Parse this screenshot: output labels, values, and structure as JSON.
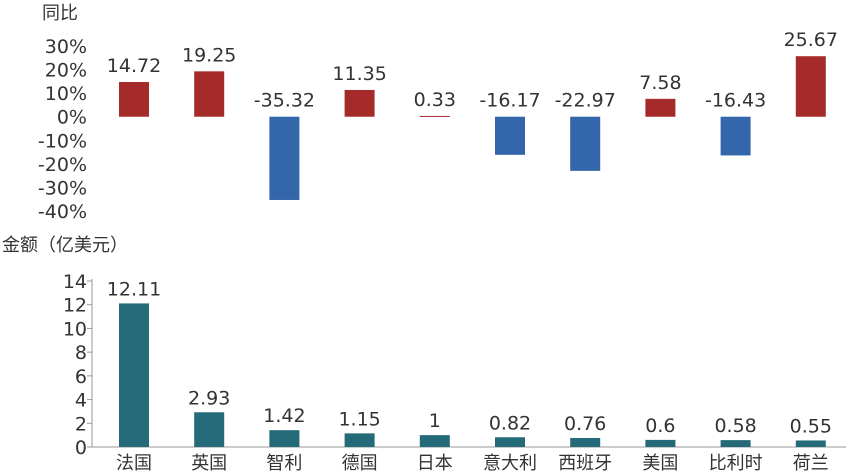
{
  "chart_data": [
    {
      "type": "bar",
      "ylabel": "同比",
      "categories": [
        "法国",
        "英国",
        "智利",
        "德国",
        "日本",
        "意大利",
        "西班牙",
        "美国",
        "比利时",
        "荷兰"
      ],
      "values": [
        14.72,
        19.25,
        -35.32,
        11.35,
        0.33,
        -16.17,
        -22.97,
        7.58,
        -16.43,
        25.67
      ],
      "value_labels": [
        "14.72",
        "19.25",
        "-35.32",
        "11.35",
        "0.33",
        "-16.17",
        "-22.97",
        "7.58",
        "-16.43",
        "25.67"
      ],
      "ylim": [
        -40,
        30
      ],
      "yticks": [
        30,
        20,
        10,
        0,
        -10,
        -20,
        -30,
        -40
      ],
      "ytick_labels": [
        "30%",
        "20%",
        "10%",
        "0%",
        "-10%",
        "-20%",
        "-30%",
        "-40%"
      ],
      "colors": {
        "positive": "#a52a2a",
        "negative": "#3466ac"
      },
      "grid": false
    },
    {
      "type": "bar",
      "ylabel": "金额（亿美元）",
      "categories": [
        "法国",
        "英国",
        "智利",
        "德国",
        "日本",
        "意大利",
        "西班牙",
        "美国",
        "比利时",
        "荷兰"
      ],
      "values": [
        12.11,
        2.93,
        1.42,
        1.15,
        1,
        0.82,
        0.76,
        0.6,
        0.58,
        0.55
      ],
      "value_labels": [
        "12.11",
        "2.93",
        "1.42",
        "1.15",
        "1",
        "0.82",
        "0.76",
        "0.6",
        "0.58",
        "0.55"
      ],
      "ylim": [
        0,
        14
      ],
      "yticks": [
        14,
        12,
        10,
        8,
        6,
        4,
        2,
        0
      ],
      "ytick_labels": [
        "14",
        "12",
        "10",
        "8",
        "6",
        "4",
        "2",
        "0"
      ],
      "colors": {
        "bar": "#256a78"
      },
      "grid": false
    }
  ]
}
